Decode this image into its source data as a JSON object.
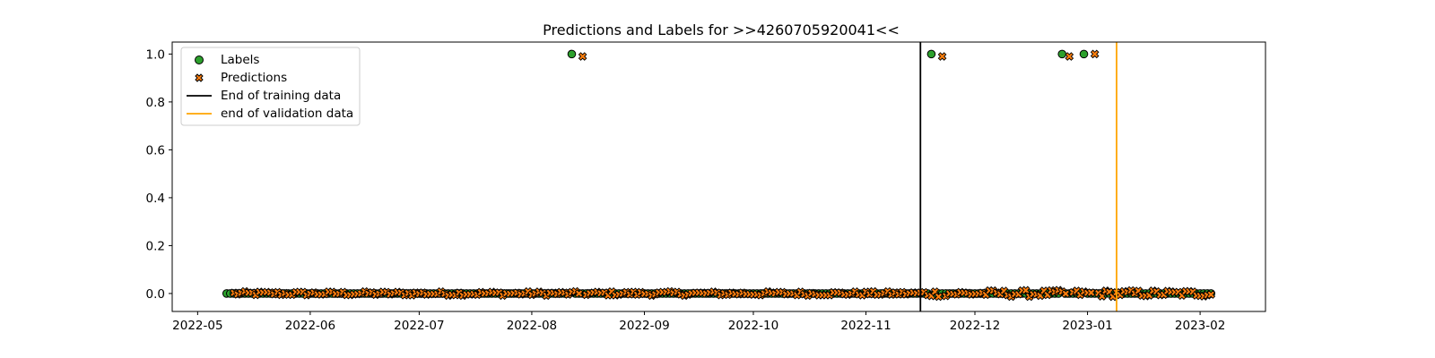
{
  "chart_data": {
    "type": "scatter",
    "title": "Predictions and Labels for >>4260705920041<<",
    "xlabel": "",
    "ylabel": "",
    "xlim": [
      "2022-04-24",
      "2023-02-19"
    ],
    "ylim": [
      -0.075,
      1.05
    ],
    "x_ticks": [
      "2022-05",
      "2022-06",
      "2022-07",
      "2022-08",
      "2022-09",
      "2022-10",
      "2022-11",
      "2022-12",
      "2023-01",
      "2023-02"
    ],
    "y_ticks": [
      "0.0",
      "0.2",
      "0.4",
      "0.6",
      "0.8",
      "1.0"
    ],
    "grid": false,
    "legend_position": "upper-left",
    "series": [
      {
        "name": "Labels",
        "marker": "circle",
        "color": "#2ca02c",
        "edgecolor": "#000000",
        "zero_range": [
          "2022-05-09",
          "2023-02-04"
        ],
        "ones": [
          "2022-08-12",
          "2022-11-19",
          "2022-12-25",
          "2022-12-31"
        ]
      },
      {
        "name": "Predictions",
        "marker": "x-filled",
        "color": "#ff7f0e",
        "edgecolor": "#000000",
        "range": [
          "2022-05-11",
          "2023-02-04"
        ],
        "noise_before": 0.009,
        "noise_after": 0.014,
        "highs": [
          {
            "x": "2022-08-15",
            "y": 0.99
          },
          {
            "x": "2022-11-22",
            "y": 0.99
          },
          {
            "x": "2022-12-27",
            "y": 0.99
          },
          {
            "x": "2023-01-03",
            "y": 1.0
          }
        ]
      }
    ],
    "vlines": [
      {
        "name": "End of training data",
        "x": "2022-11-16",
        "color": "#000000"
      },
      {
        "name": "end of validation data",
        "x": "2023-01-09",
        "color": "#ffa500"
      }
    ]
  }
}
